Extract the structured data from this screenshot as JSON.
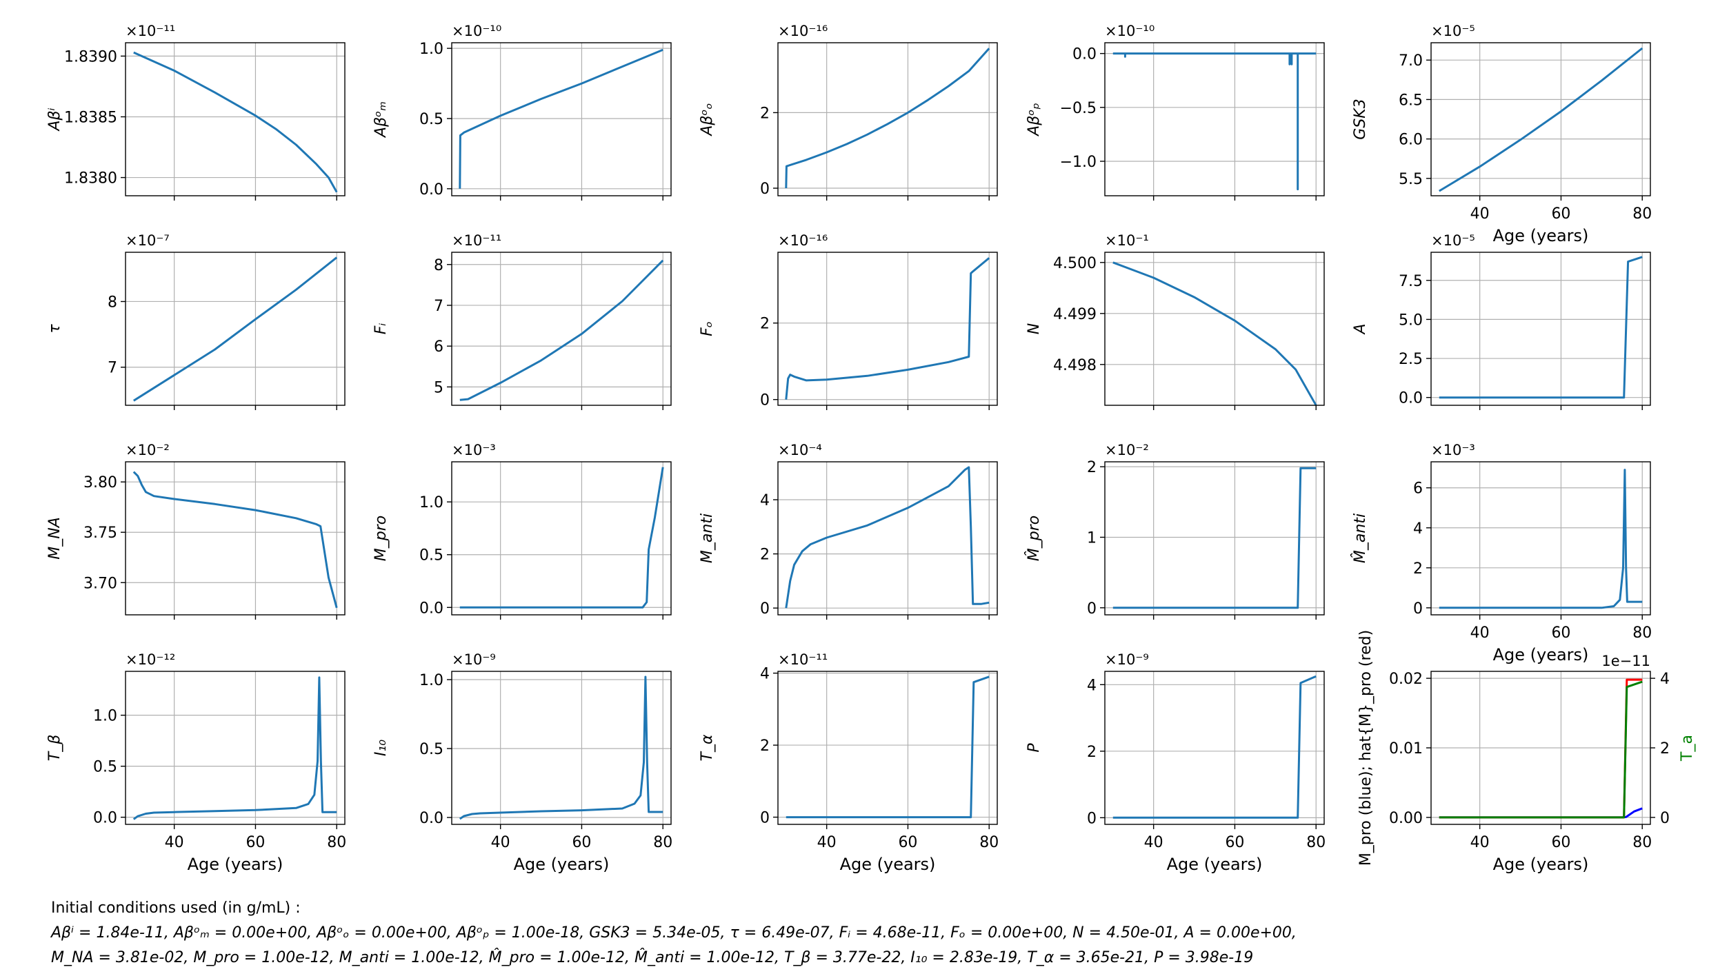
{
  "figure": {
    "x_label": "Age (years)",
    "x_ticks": [
      40,
      60,
      80
    ],
    "caption": {
      "line1": "Initial conditions used (in g/mL) :",
      "line2": "Aβⁱ = 1.84e-11, Aβᵒₘ = 0.00e+00, Aβᵒₒ = 0.00e+00, Aβᵒₚ = 1.00e-18, GSK3 = 5.34e-05, τ = 6.49e-07, Fᵢ = 4.68e-11, Fₒ = 0.00e+00, N = 4.50e-01, A = 0.00e+00,",
      "line3": "M_NA = 3.81e-02, M_pro = 1.00e-12, M_anti = 1.00e-12, M̂_pro = 1.00e-12, M̂_anti = 1.00e-12, T_β = 3.77e-22, I₁₀ = 2.83e-19, T_α = 3.65e-21, P = 3.98e-19"
    }
  },
  "chart_data": [
    {
      "type": "line",
      "ylabel": "Aβⁱ",
      "offset": "×10⁻¹¹",
      "xlim": [
        28,
        82
      ],
      "ylim": [
        1.83785,
        1.83911
      ],
      "yticks": [
        "1.8380",
        "1.8385",
        "1.8390"
      ],
      "ytick_values": [
        1.838,
        1.8385,
        1.839
      ],
      "show_xticklabels": false,
      "series": [
        {
          "color": "#1f77b4",
          "x": [
            30,
            40,
            50,
            60,
            65,
            70,
            75,
            78,
            80
          ],
          "y": [
            1.83903,
            1.83888,
            1.8387,
            1.83851,
            1.8384,
            1.83827,
            1.83811,
            1.838,
            1.83788
          ]
        }
      ]
    },
    {
      "type": "line",
      "ylabel": "Aβᵒₘ",
      "offset": "×10⁻¹⁰",
      "xlim": [
        28,
        82
      ],
      "ylim": [
        -0.05,
        1.04
      ],
      "yticks": [
        "0.0",
        "0.5",
        "1.0"
      ],
      "ytick_values": [
        0,
        0.5,
        1
      ],
      "show_xticklabels": false,
      "series": [
        {
          "color": "#1f77b4",
          "x": [
            30,
            30.1,
            31,
            40,
            50,
            60,
            70,
            80
          ],
          "y": [
            0,
            0.38,
            0.4,
            0.52,
            0.64,
            0.75,
            0.87,
            0.99
          ]
        }
      ]
    },
    {
      "type": "line",
      "ylabel": "Aβᵒₒ",
      "offset": "×10⁻¹⁶",
      "xlim": [
        28,
        82
      ],
      "ylim": [
        -0.2,
        3.85
      ],
      "yticks": [
        "0",
        "2"
      ],
      "ytick_values": [
        0,
        2
      ],
      "show_xticklabels": false,
      "series": [
        {
          "color": "#1f77b4",
          "x": [
            30,
            30.1,
            35,
            40,
            45,
            50,
            55,
            60,
            65,
            70,
            75,
            80
          ],
          "y": [
            0,
            0.58,
            0.75,
            0.95,
            1.17,
            1.42,
            1.7,
            2.0,
            2.34,
            2.7,
            3.1,
            3.7
          ]
        }
      ]
    },
    {
      "type": "line",
      "ylabel": "Aβᵒₚ",
      "offset": "×10⁻¹⁰",
      "xlim": [
        28,
        82
      ],
      "ylim": [
        -1.32,
        0.1
      ],
      "yticks": [
        "−1.0",
        "−0.5",
        "0.0"
      ],
      "ytick_values": [
        -1,
        -0.5,
        0
      ],
      "show_xticklabels": false,
      "series": [
        {
          "color": "#1f77b4",
          "x": [
            30,
            33,
            33,
            33,
            34,
            73.5,
            73.5,
            73.5,
            74,
            74,
            74,
            74.5,
            75.5,
            75.5,
            75.5,
            76,
            80
          ],
          "y": [
            0,
            0,
            -0.03,
            0,
            0,
            0,
            -0.1,
            0,
            0,
            -0.1,
            0,
            0,
            0,
            -1.26,
            0,
            0,
            0
          ]
        }
      ]
    },
    {
      "type": "line",
      "ylabel": "GSK3",
      "offset": "×10⁻⁵",
      "xlim": [
        28,
        82
      ],
      "ylim": [
        5.28,
        7.22
      ],
      "yticks": [
        "5.5",
        "6.0",
        "6.5",
        "7.0"
      ],
      "ytick_values": [
        5.5,
        6,
        6.5,
        7
      ],
      "show_xticklabels": true,
      "series": [
        {
          "color": "#1f77b4",
          "x": [
            30,
            40,
            50,
            60,
            70,
            80
          ],
          "y": [
            5.34,
            5.65,
            5.99,
            6.35,
            6.74,
            7.15
          ]
        }
      ]
    },
    {
      "type": "line",
      "ylabel": "τ",
      "offset": "×10⁻⁷",
      "xlim": [
        28,
        82
      ],
      "ylim": [
        6.42,
        8.75
      ],
      "yticks": [
        "7",
        "8"
      ],
      "ytick_values": [
        7,
        8
      ],
      "show_xticklabels": false,
      "series": [
        {
          "color": "#1f77b4",
          "x": [
            30,
            40,
            50,
            60,
            70,
            80
          ],
          "y": [
            6.49,
            6.88,
            7.27,
            7.73,
            8.18,
            8.67
          ]
        }
      ]
    },
    {
      "type": "line",
      "ylabel": "Fᵢ",
      "offset": "×10⁻¹¹",
      "xlim": [
        28,
        82
      ],
      "ylim": [
        4.55,
        8.3
      ],
      "yticks": [
        "5",
        "6",
        "7",
        "8"
      ],
      "ytick_values": [
        5,
        6,
        7,
        8
      ],
      "show_xticklabels": false,
      "series": [
        {
          "color": "#1f77b4",
          "x": [
            30,
            32,
            40,
            50,
            60,
            70,
            80
          ],
          "y": [
            4.68,
            4.7,
            5.1,
            5.65,
            6.3,
            7.1,
            8.1
          ]
        }
      ]
    },
    {
      "type": "line",
      "ylabel": "Fₒ",
      "offset": "×10⁻¹⁶",
      "xlim": [
        28,
        82
      ],
      "ylim": [
        -0.15,
        3.85
      ],
      "yticks": [
        "0",
        "2"
      ],
      "ytick_values": [
        0,
        2
      ],
      "show_xticklabels": false,
      "series": [
        {
          "color": "#1f77b4",
          "x": [
            30,
            30.5,
            31,
            32,
            35,
            40,
            50,
            60,
            70,
            75,
            75.5,
            76,
            80
          ],
          "y": [
            0,
            0.55,
            0.65,
            0.6,
            0.5,
            0.52,
            0.62,
            0.78,
            0.98,
            1.12,
            3.3,
            3.35,
            3.7
          ]
        }
      ]
    },
    {
      "type": "line",
      "ylabel": "N",
      "offset": "×10⁻¹",
      "xlim": [
        28,
        82
      ],
      "ylim": [
        4.4972,
        4.5002
      ],
      "yticks": [
        "4.498",
        "4.499",
        "4.500"
      ],
      "ytick_values": [
        4.498,
        4.499,
        4.5
      ],
      "show_xticklabels": false,
      "series": [
        {
          "color": "#1f77b4",
          "x": [
            30,
            40,
            50,
            60,
            70,
            75,
            80
          ],
          "y": [
            4.5,
            4.4997,
            4.49932,
            4.49886,
            4.4983,
            4.4979,
            4.4972
          ]
        }
      ]
    },
    {
      "type": "line",
      "ylabel": "A",
      "offset": "×10⁻⁵",
      "xlim": [
        28,
        82
      ],
      "ylim": [
        -0.5,
        9.3
      ],
      "yticks": [
        "0.0",
        "2.5",
        "5.0",
        "7.5"
      ],
      "ytick_values": [
        0,
        2.5,
        5,
        7.5
      ],
      "show_xticklabels": false,
      "series": [
        {
          "color": "#1f77b4",
          "x": [
            30,
            75.5,
            76.5,
            80
          ],
          "y": [
            0,
            0,
            8.7,
            9.0
          ]
        }
      ]
    },
    {
      "type": "line",
      "ylabel": "M_NA",
      "offset": "×10⁻²",
      "xlim": [
        28,
        82
      ],
      "ylim": [
        3.668,
        3.82
      ],
      "yticks": [
        "3.70",
        "3.75",
        "3.80"
      ],
      "ytick_values": [
        3.7,
        3.75,
        3.8
      ],
      "show_xticklabels": false,
      "series": [
        {
          "color": "#1f77b4",
          "x": [
            30,
            31,
            32,
            33,
            35,
            40,
            50,
            60,
            70,
            75,
            76,
            78,
            80
          ],
          "y": [
            3.81,
            3.806,
            3.797,
            3.79,
            3.786,
            3.783,
            3.778,
            3.772,
            3.764,
            3.758,
            3.756,
            3.705,
            3.675
          ]
        }
      ]
    },
    {
      "type": "line",
      "ylabel": "M_pro",
      "offset": "×10⁻³",
      "xlim": [
        28,
        82
      ],
      "ylim": [
        -0.07,
        1.38
      ],
      "yticks": [
        "0.0",
        "0.5",
        "1.0"
      ],
      "ytick_values": [
        0,
        0.5,
        1
      ],
      "show_xticklabels": false,
      "series": [
        {
          "color": "#1f77b4",
          "x": [
            30,
            75,
            76,
            76.5,
            78,
            80
          ],
          "y": [
            0,
            0,
            0.05,
            0.55,
            0.85,
            1.33
          ]
        }
      ]
    },
    {
      "type": "line",
      "ylabel": "M_anti",
      "offset": "×10⁻⁴",
      "xlim": [
        28,
        82
      ],
      "ylim": [
        -0.25,
        5.4
      ],
      "yticks": [
        "0",
        "2",
        "4"
      ],
      "ytick_values": [
        0,
        2,
        4
      ],
      "show_xticklabels": false,
      "series": [
        {
          "color": "#1f77b4",
          "x": [
            30,
            31,
            32,
            34,
            36,
            40,
            50,
            60,
            70,
            74,
            75,
            75.5,
            76,
            78,
            80
          ],
          "y": [
            0,
            1.0,
            1.6,
            2.1,
            2.35,
            2.6,
            3.05,
            3.7,
            4.5,
            5.1,
            5.2,
            3.0,
            0.15,
            0.15,
            0.2
          ]
        }
      ]
    },
    {
      "type": "line",
      "ylabel": "M̂_pro",
      "offset": "×10⁻²",
      "xlim": [
        28,
        82
      ],
      "ylim": [
        -0.1,
        2.07
      ],
      "yticks": [
        "0",
        "1",
        "2"
      ],
      "ytick_values": [
        0,
        1,
        2
      ],
      "show_xticklabels": false,
      "series": [
        {
          "color": "#1f77b4",
          "x": [
            30,
            75.5,
            76.2,
            80
          ],
          "y": [
            0,
            0,
            1.98,
            1.98
          ]
        }
      ]
    },
    {
      "type": "line",
      "ylabel": "M̂_anti",
      "offset": "×10⁻³",
      "xlim": [
        28,
        82
      ],
      "ylim": [
        -0.35,
        7.3
      ],
      "yticks": [
        "0",
        "2",
        "4",
        "6"
      ],
      "ytick_values": [
        0,
        2,
        4,
        6
      ],
      "show_xticklabels": true,
      "series": [
        {
          "color": "#1f77b4",
          "x": [
            30,
            70,
            73,
            74.5,
            75.3,
            75.7,
            76,
            76.3,
            77,
            80
          ],
          "y": [
            0,
            0,
            0.08,
            0.4,
            2.0,
            6.9,
            2.0,
            0.3,
            0.3,
            0.3
          ]
        }
      ]
    },
    {
      "type": "line",
      "ylabel": "T_β",
      "offset": "×10⁻¹²",
      "xlim": [
        28,
        82
      ],
      "ylim": [
        -0.07,
        1.43
      ],
      "yticks": [
        "0.0",
        "0.5",
        "1.0"
      ],
      "ytick_values": [
        0,
        0.5,
        1
      ],
      "show_xticklabels": true,
      "series": [
        {
          "color": "#1f77b4",
          "x": [
            30,
            31,
            33,
            35,
            40,
            50,
            60,
            70,
            73,
            74.5,
            75.3,
            75.7,
            76.1,
            76.5,
            77,
            80
          ],
          "y": [
            -0.02,
            0.01,
            0.035,
            0.045,
            0.05,
            0.06,
            0.07,
            0.09,
            0.13,
            0.22,
            0.55,
            1.37,
            0.55,
            0.05,
            0.05,
            0.05
          ]
        }
      ]
    },
    {
      "type": "line",
      "ylabel": "I₁₀",
      "offset": "×10⁻⁹",
      "xlim": [
        28,
        82
      ],
      "ylim": [
        -0.05,
        1.06
      ],
      "yticks": [
        "0.0",
        "0.5",
        "1.0"
      ],
      "ytick_values": [
        0,
        0.5,
        1
      ],
      "show_xticklabels": true,
      "series": [
        {
          "color": "#1f77b4",
          "x": [
            30,
            31,
            33,
            35,
            40,
            50,
            60,
            70,
            73,
            74.5,
            75.3,
            75.7,
            76.1,
            76.5,
            77,
            80
          ],
          "y": [
            -0.01,
            0.01,
            0.025,
            0.03,
            0.035,
            0.045,
            0.052,
            0.065,
            0.1,
            0.16,
            0.4,
            1.02,
            0.4,
            0.04,
            0.04,
            0.04
          ]
        }
      ]
    },
    {
      "type": "line",
      "ylabel": "T_α",
      "offset": "×10⁻¹¹",
      "xlim": [
        28,
        82
      ],
      "ylim": [
        -0.2,
        4.05
      ],
      "yticks": [
        "0",
        "2",
        "4"
      ],
      "ytick_values": [
        0,
        2,
        4
      ],
      "show_xticklabels": true,
      "series": [
        {
          "color": "#1f77b4",
          "x": [
            30,
            75.5,
            76.2,
            80
          ],
          "y": [
            0,
            0,
            3.75,
            3.9
          ]
        }
      ]
    },
    {
      "type": "line",
      "ylabel": "P",
      "offset": "×10⁻⁹",
      "xlim": [
        28,
        82
      ],
      "ylim": [
        -0.2,
        4.4
      ],
      "yticks": [
        "0",
        "2",
        "4"
      ],
      "ytick_values": [
        0,
        2,
        4
      ],
      "show_xticklabels": true,
      "series": [
        {
          "color": "#1f77b4",
          "x": [
            30,
            75.5,
            76.2,
            80
          ],
          "y": [
            0,
            0,
            4.05,
            4.25
          ]
        }
      ]
    },
    {
      "type": "line",
      "ylabel": "M_pro (blue); hat{M}_pro (red)",
      "ylabel_right": "T_a",
      "offset": "1e−11",
      "xlim": [
        28,
        82
      ],
      "ylim": [
        -0.001,
        0.021
      ],
      "yticks": [
        "0.00",
        "0.01",
        "0.02"
      ],
      "ytick_values": [
        0,
        0.01,
        0.02
      ],
      "y2lim": [
        -0.2,
        4.2
      ],
      "y2ticks": [
        "0",
        "2",
        "4"
      ],
      "y2tick_values": [
        0,
        2,
        4
      ],
      "show_xticklabels": true,
      "series": [
        {
          "color": "#0000ff",
          "axis": "left",
          "x": [
            30,
            75,
            76,
            78,
            80
          ],
          "y": [
            0,
            0,
            5e-05,
            0.00085,
            0.0013
          ]
        },
        {
          "color": "#ff0000",
          "axis": "left",
          "x": [
            30,
            75.5,
            76.2,
            80
          ],
          "y": [
            0,
            0,
            0.0198,
            0.0198
          ]
        },
        {
          "color": "#008000",
          "axis": "right",
          "x": [
            30,
            75.5,
            76.2,
            80
          ],
          "y": [
            0,
            0,
            3.75,
            3.9
          ]
        }
      ]
    }
  ]
}
